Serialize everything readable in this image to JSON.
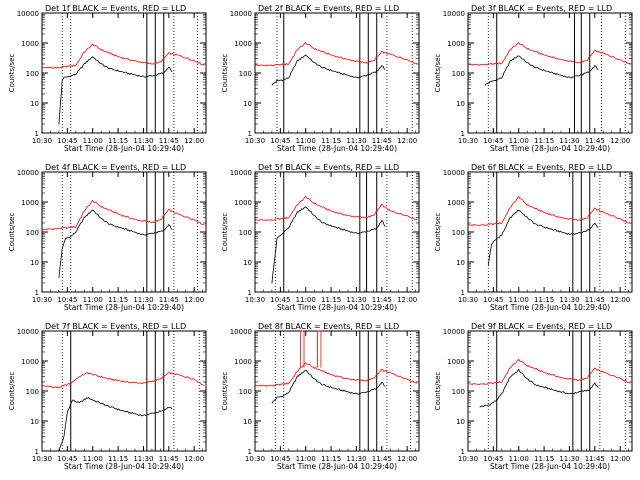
{
  "colors": {
    "events": "#000000",
    "lld": "#ff0000",
    "axis": "#000000"
  },
  "shared": {
    "ylabel": "Counts/sec",
    "xlabel": "Start Time (28-Jun-04 10:29:40)",
    "x_tick_labels": [
      "10:30",
      "10:45",
      "11:00",
      "11:15",
      "11:30",
      "11:45",
      "12:00"
    ],
    "y_tick_labels": [
      "1",
      "10",
      "100",
      "1000",
      "10000"
    ]
  },
  "chart_data": [
    {
      "type": "line",
      "title": "Det 1f  BLACK = Events, RED = LLD",
      "yscale": "log",
      "ylim": [
        1,
        10000
      ],
      "xlabel": "Start Time (28-Jun-04 10:29:40)",
      "ylabel": "Counts/sec",
      "solid_markers": [
        "11:32",
        "11:37",
        "11:42"
      ],
      "dotted_markers": [
        "10:42",
        "10:47",
        "11:48",
        "12:02"
      ],
      "events": {
        "x": [
          "10:40",
          "10:42",
          "10:43",
          "10:47",
          "10:50",
          "10:55",
          "11:00",
          "11:05",
          "11:10",
          "11:20",
          "11:30",
          "11:35",
          "11:42",
          "11:45",
          "11:47"
        ],
        "y": [
          2,
          60,
          70,
          80,
          90,
          200,
          350,
          200,
          140,
          100,
          75,
          80,
          100,
          160,
          110
        ]
      },
      "lld": {
        "x": [
          "10:30",
          "10:40",
          "10:50",
          "10:55",
          "11:00",
          "11:05",
          "11:15",
          "11:25",
          "11:35",
          "11:40",
          "11:45",
          "11:50",
          "12:00",
          "12:06"
        ],
        "y": [
          150,
          150,
          180,
          500,
          900,
          600,
          350,
          250,
          200,
          230,
          450,
          400,
          260,
          180
        ]
      }
    },
    {
      "type": "line",
      "title": "Det 2f  BLACK = Events, RED = LLD",
      "yscale": "log",
      "ylim": [
        1,
        10000
      ],
      "xlabel": "Start Time (28-Jun-04 10:29:40)",
      "ylabel": "Counts/sec",
      "solid_markers": [
        "10:47",
        "11:32",
        "11:37",
        "11:42"
      ],
      "dotted_markers": [
        "10:43",
        "11:48",
        "12:03"
      ],
      "events": {
        "x": [
          "10:40",
          "10:43",
          "10:47",
          "10:50",
          "10:55",
          "11:00",
          "11:05",
          "11:10",
          "11:20",
          "11:30",
          "11:35",
          "11:42",
          "11:45",
          "11:47"
        ],
        "y": [
          40,
          55,
          60,
          70,
          250,
          400,
          220,
          150,
          100,
          70,
          80,
          110,
          180,
          130
        ]
      },
      "lld": {
        "x": [
          "10:30",
          "10:40",
          "10:50",
          "10:55",
          "11:00",
          "11:05",
          "11:15",
          "11:25",
          "11:35",
          "11:40",
          "11:45",
          "11:50",
          "12:00",
          "12:06"
        ],
        "y": [
          180,
          180,
          200,
          600,
          1000,
          650,
          400,
          280,
          220,
          250,
          500,
          420,
          280,
          200
        ]
      }
    },
    {
      "type": "line",
      "title": "Det 3f  BLACK = Events, RED = LLD",
      "yscale": "log",
      "ylim": [
        1,
        10000
      ],
      "xlabel": "Start Time (28-Jun-04 10:29:40)",
      "ylabel": "Counts/sec",
      "solid_markers": [
        "10:47",
        "11:33",
        "11:37",
        "11:42"
      ],
      "dotted_markers": [
        "10:42",
        "11:49",
        "12:03"
      ],
      "events": {
        "x": [
          "10:40",
          "10:43",
          "10:47",
          "10:50",
          "10:55",
          "11:00",
          "11:05",
          "11:10",
          "11:20",
          "11:30",
          "11:35",
          "11:42",
          "11:45",
          "11:47"
        ],
        "y": [
          40,
          50,
          60,
          70,
          250,
          380,
          220,
          150,
          100,
          70,
          80,
          110,
          180,
          130
        ]
      },
      "lld": {
        "x": [
          "10:30",
          "10:40",
          "10:50",
          "10:55",
          "11:00",
          "11:05",
          "11:15",
          "11:25",
          "11:35",
          "11:40",
          "11:45",
          "11:50",
          "12:00",
          "12:06"
        ],
        "y": [
          190,
          190,
          210,
          600,
          1000,
          650,
          400,
          280,
          220,
          250,
          550,
          450,
          280,
          200
        ]
      }
    },
    {
      "type": "line",
      "title": "Det 4f  BLACK = Events, RED = LLD",
      "yscale": "log",
      "ylim": [
        1,
        10000
      ],
      "xlabel": "Start Time (28-Jun-04 10:29:40)",
      "ylabel": "Counts/sec",
      "solid_markers": [
        "11:32",
        "11:37",
        "11:42"
      ],
      "dotted_markers": [
        "10:42",
        "10:47",
        "11:48",
        "12:02"
      ],
      "events": {
        "x": [
          "10:40",
          "10:42",
          "10:44",
          "10:47",
          "10:50",
          "10:55",
          "11:00",
          "11:05",
          "11:10",
          "11:20",
          "11:30",
          "11:35",
          "11:42",
          "11:45",
          "11:47"
        ],
        "y": [
          3,
          30,
          60,
          70,
          100,
          300,
          550,
          280,
          180,
          120,
          80,
          90,
          110,
          180,
          120
        ]
      },
      "lld": {
        "x": [
          "10:30",
          "10:40",
          "10:50",
          "10:55",
          "11:00",
          "11:05",
          "11:15",
          "11:25",
          "11:35",
          "11:40",
          "11:45",
          "11:50",
          "12:00",
          "12:06"
        ],
        "y": [
          120,
          130,
          150,
          500,
          1100,
          700,
          400,
          260,
          210,
          250,
          550,
          400,
          260,
          170
        ]
      }
    },
    {
      "type": "line",
      "title": "Det 5f  BLACK = Events, RED = LLD",
      "yscale": "log",
      "ylim": [
        1,
        10000
      ],
      "xlabel": "Start Time (28-Jun-04 10:29:40)",
      "ylabel": "Counts/sec",
      "solid_markers": [
        "10:47",
        "11:32",
        "11:36",
        "11:42"
      ],
      "dotted_markers": [
        "10:42",
        "11:48",
        "12:03"
      ],
      "events": {
        "x": [
          "10:40",
          "10:43",
          "10:47",
          "10:50",
          "10:55",
          "11:00",
          "11:05",
          "11:10",
          "11:20",
          "11:30",
          "11:35",
          "11:42",
          "11:45",
          "11:47"
        ],
        "y": [
          2,
          60,
          100,
          140,
          450,
          700,
          350,
          200,
          130,
          90,
          100,
          130,
          250,
          150
        ]
      },
      "lld": {
        "x": [
          "10:30",
          "10:40",
          "10:50",
          "10:55",
          "11:00",
          "11:05",
          "11:15",
          "11:25",
          "11:35",
          "11:40",
          "11:45",
          "11:50",
          "12:00",
          "12:06"
        ],
        "y": [
          250,
          250,
          300,
          800,
          1500,
          900,
          500,
          350,
          300,
          350,
          800,
          500,
          350,
          250
        ]
      }
    },
    {
      "type": "line",
      "title": "Det 6f  BLACK = Events, RED = LLD",
      "yscale": "log",
      "ylim": [
        1,
        10000
      ],
      "xlabel": "Start Time (28-Jun-04 10:29:40)",
      "ylabel": "Counts/sec",
      "solid_markers": [
        "10:47",
        "11:32",
        "11:37",
        "11:42"
      ],
      "dotted_markers": [
        "10:42",
        "11:48",
        "12:03"
      ],
      "events": {
        "x": [
          "10:42",
          "10:44",
          "10:47",
          "10:50",
          "10:55",
          "11:00",
          "11:05",
          "11:10",
          "11:20",
          "11:30",
          "11:35",
          "11:42",
          "11:45",
          "11:47"
        ],
        "y": [
          8,
          40,
          60,
          80,
          300,
          550,
          300,
          180,
          120,
          85,
          90,
          120,
          200,
          140
        ]
      },
      "lld": {
        "x": [
          "10:30",
          "10:40",
          "10:50",
          "10:55",
          "11:00",
          "11:05",
          "11:15",
          "11:25",
          "11:35",
          "11:40",
          "11:45",
          "11:50",
          "12:00",
          "12:06"
        ],
        "y": [
          170,
          170,
          200,
          650,
          1500,
          800,
          450,
          300,
          250,
          280,
          600,
          450,
          280,
          190
        ]
      }
    },
    {
      "type": "line",
      "title": "Det 7f  BLACK = Events, RED = LLD",
      "yscale": "log",
      "ylim": [
        1,
        10000
      ],
      "xlabel": "Start Time (28-Jun-04 10:29:40)",
      "ylabel": "Counts/sec",
      "solid_markers": [
        "10:47",
        "11:32",
        "11:37",
        "11:42"
      ],
      "dotted_markers": [
        "10:42",
        "11:48",
        "12:03"
      ],
      "events": {
        "x": [
          "10:40",
          "10:43",
          "10:45",
          "10:48",
          "10:52",
          "10:57",
          "11:02",
          "11:10",
          "11:20",
          "11:30",
          "11:35",
          "11:42",
          "11:45",
          "11:47"
        ],
        "y": [
          1,
          3,
          20,
          50,
          40,
          60,
          45,
          30,
          20,
          15,
          18,
          22,
          30,
          25
        ]
      },
      "lld": {
        "x": [
          "10:30",
          "10:40",
          "10:47",
          "10:52",
          "10:57",
          "11:02",
          "11:10",
          "11:20",
          "11:30",
          "11:40",
          "11:45",
          "11:50",
          "12:00",
          "12:06"
        ],
        "y": [
          150,
          130,
          180,
          300,
          400,
          330,
          250,
          200,
          180,
          250,
          400,
          350,
          250,
          150
        ]
      }
    },
    {
      "type": "line",
      "title": "Det 8f  BLACK = Events, RED = LLD",
      "yscale": "log",
      "ylim": [
        1,
        10000
      ],
      "xlabel": "Start Time (28-Jun-04 10:29:40)",
      "ylabel": "Counts/sec",
      "solid_markers": [
        "11:32",
        "11:37",
        "11:42"
      ],
      "dotted_markers": [
        "10:42",
        "10:47",
        "11:48",
        "12:02"
      ],
      "spike": {
        "x": [
          "10:57",
          "10:59",
          "11:07",
          "11:09"
        ],
        "y": [
          10000,
          10000,
          10000,
          10000
        ]
      },
      "events": {
        "x": [
          "10:40",
          "10:43",
          "10:47",
          "10:50",
          "10:55",
          "11:00",
          "11:05",
          "11:10",
          "11:20",
          "11:30",
          "11:35",
          "11:42",
          "11:45",
          "11:47"
        ],
        "y": [
          40,
          60,
          70,
          90,
          300,
          500,
          250,
          160,
          110,
          80,
          90,
          120,
          200,
          140
        ]
      },
      "lld": {
        "x": [
          "10:30",
          "10:40",
          "10:50",
          "10:55",
          "11:00",
          "11:05",
          "11:15",
          "11:25",
          "11:35",
          "11:40",
          "11:45",
          "11:50",
          "12:00",
          "12:06"
        ],
        "y": [
          150,
          150,
          180,
          450,
          850,
          600,
          350,
          250,
          220,
          260,
          500,
          400,
          250,
          180
        ]
      }
    },
    {
      "type": "line",
      "title": "Det 9f  BLACK = Events, RED = LLD",
      "yscale": "log",
      "ylim": [
        1,
        10000
      ],
      "xlabel": "Start Time (28-Jun-04 10:29:40)",
      "ylabel": "Counts/sec",
      "solid_markers": [
        "10:47",
        "11:32",
        "11:37",
        "11:42"
      ],
      "dotted_markers": [
        "10:42",
        "11:48",
        "12:03"
      ],
      "events": {
        "x": [
          "10:37",
          "10:40",
          "10:43",
          "10:47",
          "10:50",
          "10:55",
          "11:00",
          "11:05",
          "11:10",
          "11:20",
          "11:30",
          "11:35",
          "11:42",
          "11:45",
          "11:47"
        ],
        "y": [
          30,
          32,
          35,
          50,
          80,
          300,
          500,
          250,
          160,
          110,
          80,
          90,
          110,
          180,
          130
        ]
      },
      "lld": {
        "x": [
          "10:30",
          "10:40",
          "10:50",
          "10:55",
          "11:00",
          "11:05",
          "11:15",
          "11:25",
          "11:35",
          "11:40",
          "11:45",
          "11:50",
          "12:00",
          "12:06"
        ],
        "y": [
          170,
          170,
          200,
          600,
          1100,
          700,
          420,
          280,
          230,
          260,
          550,
          420,
          270,
          180
        ]
      }
    }
  ]
}
